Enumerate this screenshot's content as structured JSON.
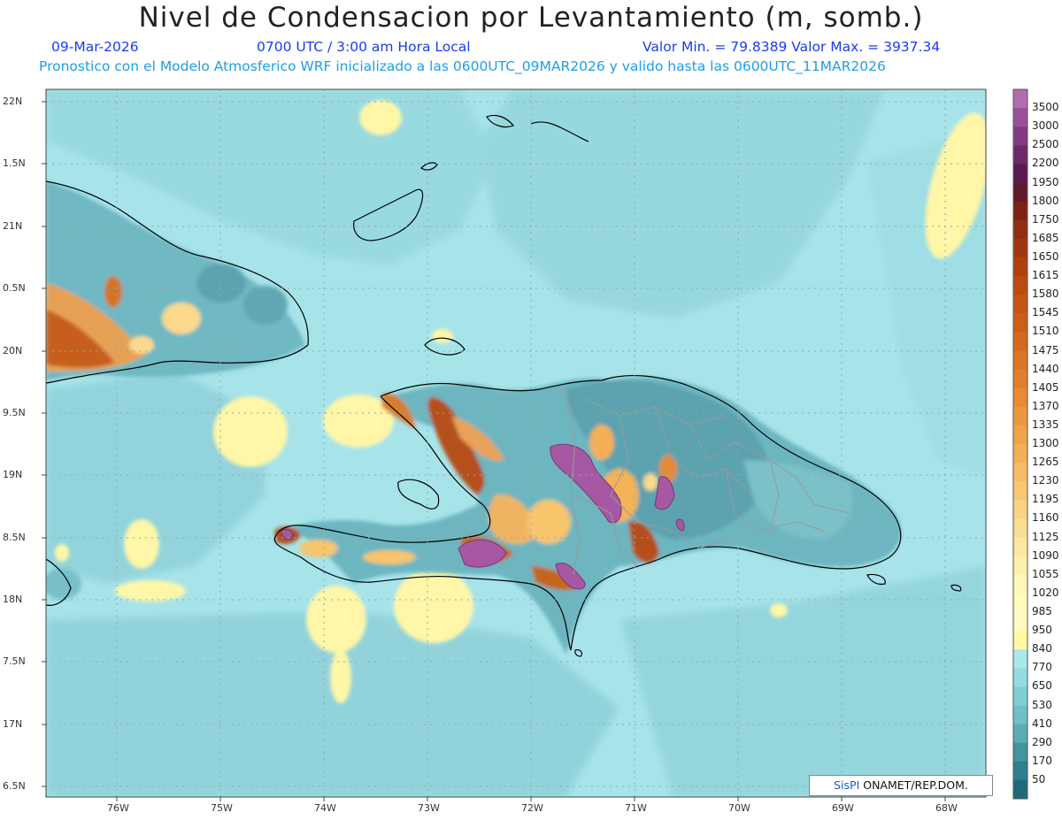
{
  "title": "Nivel de Condensacion por Levantamiento (m, somb.)",
  "date": "09-Mar-2026",
  "time_label": "0700 UTC / 3:00 am Hora Local",
  "min_max": "Valor Min. = 79.8389   Valor Max. = 3937.34",
  "forecast_note": "Pronostico con el Modelo Atmosferico WRF inicializado a las 0600UTC_09MAR2026 y valido hasta las  0600UTC_11MAR2026",
  "lon_labels": [
    "76W",
    "75W",
    "74W",
    "73W",
    "72W",
    "71W",
    "70W",
    "69W",
    "68W"
  ],
  "lat_labels": [
    "22N",
    "1.5N",
    "21N",
    "0.5N",
    "20N",
    "9.5N",
    "19N",
    "8.5N",
    "18N",
    "7.5N",
    "17N",
    "6.5N"
  ],
  "colorbar": {
    "levels": [
      "3500",
      "3000",
      "2500",
      "2200",
      "1950",
      "1800",
      "1750",
      "1685",
      "1650",
      "1615",
      "1580",
      "1545",
      "1510",
      "1475",
      "1440",
      "1405",
      "1370",
      "1335",
      "1300",
      "1265",
      "1230",
      "1195",
      "1160",
      "1125",
      "1090",
      "1055",
      "1020",
      "985",
      "950",
      "840",
      "770",
      "650",
      "530",
      "410",
      "290",
      "170",
      "50"
    ],
    "colors": [
      "#b36cb0",
      "#9a4f99",
      "#843a82",
      "#6c2a68",
      "#571a52",
      "#5d1b2c",
      "#7a2314",
      "#8e2f12",
      "#9f3812",
      "#b0410f",
      "#bb4b10",
      "#c45515",
      "#cc5e18",
      "#d4691d",
      "#dc7425",
      "#e27f2c",
      "#e88b33",
      "#ec983e",
      "#f0a44a",
      "#f3b057",
      "#f5bc65",
      "#f8c774",
      "#f9d383",
      "#fbdd92",
      "#fde7a1",
      "#fdf0ae",
      "#fef7b8",
      "#fffbbd",
      "#fffbc0",
      "#fff9a4",
      "#abe8ec",
      "#96dbe1",
      "#80cfd5",
      "#6fc0c8",
      "#5aacb8",
      "#42949f",
      "#2e7f8e",
      "#1e6a7c"
    ]
  },
  "credit": {
    "brand": "SisPI",
    "text": " ONAMET/REP.DOM."
  },
  "colors": {
    "sea": "#a7e4ea",
    "land_base": "#8fcfd3"
  }
}
